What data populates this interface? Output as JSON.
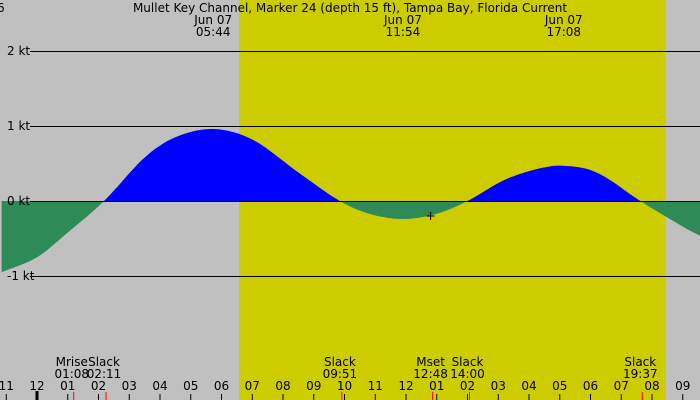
{
  "chart_data": {
    "type": "area",
    "title": "Mullet Key Channel, Marker 24 (depth 15 ft), Tampa Bay, Florida Current",
    "corner_fragment": "6",
    "ylabel_unit": "kt",
    "ylim": [
      -2.3,
      2.6
    ],
    "y_grid": [
      {
        "value": 2,
        "label": "2 kt"
      },
      {
        "value": 1,
        "label": "1 kt"
      },
      {
        "value": 0,
        "label": "0 kt"
      },
      {
        "value": -1,
        "label": "-1 kt"
      }
    ],
    "xlim": [
      -1.15,
      22.55
    ],
    "x_unit": "hour of day (Jun 07)",
    "x_hour_labels": [
      {
        "hour": -1,
        "label": "11"
      },
      {
        "hour": 0,
        "label": "12"
      },
      {
        "hour": 1,
        "label": "01"
      },
      {
        "hour": 2,
        "label": "02"
      },
      {
        "hour": 3,
        "label": "03"
      },
      {
        "hour": 4,
        "label": "04"
      },
      {
        "hour": 5,
        "label": "05"
      },
      {
        "hour": 6,
        "label": "06"
      },
      {
        "hour": 7,
        "label": "07"
      },
      {
        "hour": 8,
        "label": "08"
      },
      {
        "hour": 9,
        "label": "09"
      },
      {
        "hour": 10,
        "label": "10"
      },
      {
        "hour": 11,
        "label": "11"
      },
      {
        "hour": 12,
        "label": "12"
      },
      {
        "hour": 13,
        "label": "01"
      },
      {
        "hour": 14,
        "label": "02"
      },
      {
        "hour": 15,
        "label": "03"
      },
      {
        "hour": 16,
        "label": "04"
      },
      {
        "hour": 17,
        "label": "05"
      },
      {
        "hour": 18,
        "label": "06"
      },
      {
        "hour": 19,
        "label": "07"
      },
      {
        "hour": 20,
        "label": "08"
      },
      {
        "hour": 21,
        "label": "09"
      }
    ],
    "daylight": {
      "start": 6.57,
      "end": 20.45
    },
    "top_events": [
      {
        "hour": 5.73,
        "date": "Jun 07",
        "time": "05:44"
      },
      {
        "hour": 11.9,
        "date": "Jun 07",
        "time": "11:54"
      },
      {
        "hour": 17.13,
        "date": "Jun 07",
        "time": "17:08"
      }
    ],
    "bottom_events": [
      {
        "hour": 1.13,
        "name": "Mrise",
        "time": "01:08"
      },
      {
        "hour": 2.18,
        "name": "Slack",
        "time": "02:11"
      },
      {
        "hour": 9.85,
        "name": "Slack",
        "time": "09:51"
      },
      {
        "hour": 12.8,
        "name": "Mset",
        "time": "12:48"
      },
      {
        "hour": 14.0,
        "name": "Slack",
        "time": "14:00"
      },
      {
        "hour": 19.62,
        "name": "Slack",
        "time": "19:37"
      }
    ],
    "red_marks": [
      1.13,
      2.18,
      9.85,
      12.8,
      14.0,
      19.62
    ],
    "current_marker": {
      "hour": 12.8,
      "value": -0.2
    },
    "series": [
      {
        "x": [
          -1.15,
          0.0,
          1.0,
          2.18,
          3.5,
          4.5,
          5.73,
          7.0,
          8.5,
          9.85,
          10.8,
          11.9,
          13.0,
          14.0,
          15.2,
          16.3,
          17.13,
          18.2,
          19.62,
          20.5,
          21.5,
          22.55
        ],
        "values": [
          -0.95,
          -0.75,
          -0.42,
          0.0,
          0.58,
          0.85,
          0.96,
          0.82,
          0.38,
          0.0,
          -0.17,
          -0.24,
          -0.17,
          0.0,
          0.28,
          0.43,
          0.47,
          0.38,
          0.0,
          -0.22,
          -0.45,
          -0.6
        ]
      }
    ],
    "colors": {
      "night": "#c0c0c0",
      "day": "#cccc00",
      "flood": "#0000ff",
      "ebb": "#2e8b57",
      "grid": "#000000",
      "event_tick": "#ff0000"
    }
  }
}
